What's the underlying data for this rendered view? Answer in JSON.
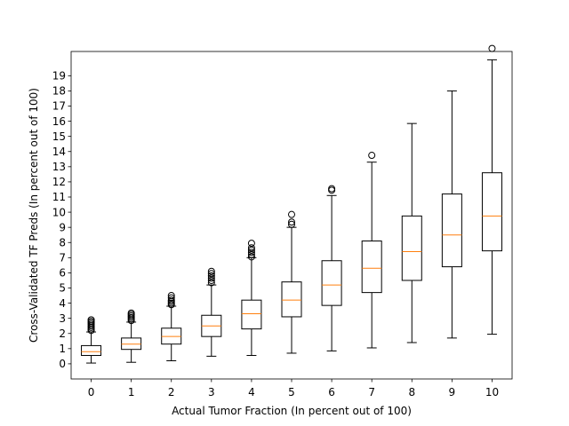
{
  "chart_data": {
    "type": "boxplot",
    "title": "",
    "xlabel": "Actual Tumor Fraction (In percent out of 100)",
    "ylabel": "Cross-Validated TF Preds (In percent out of 100)",
    "categories": [
      "0",
      "1",
      "2",
      "3",
      "4",
      "5",
      "6",
      "7",
      "8",
      "9",
      "10"
    ],
    "xlim": [
      -0.5,
      10.5
    ],
    "ylim": [
      -1,
      20.6
    ],
    "yticks": [
      "0",
      "1",
      "2",
      "3",
      "4",
      "5",
      "6",
      "7",
      "8",
      "9",
      "10",
      "11",
      "12",
      "13",
      "14",
      "15",
      "16",
      "17",
      "18",
      "19"
    ],
    "grid": false,
    "colors": {
      "box": "#000000",
      "median": "#ff7f0e",
      "flier": "#000000"
    },
    "boxes": [
      {
        "x": 0,
        "whisker_low": 0.05,
        "q1": 0.55,
        "median": 0.8,
        "q3": 1.2,
        "whisker_high": 2.1,
        "fliers": [
          2.2,
          2.3,
          2.4,
          2.5,
          2.6,
          2.7,
          2.8,
          2.9
        ]
      },
      {
        "x": 1,
        "whisker_low": 0.1,
        "q1": 0.95,
        "median": 1.3,
        "q3": 1.7,
        "whisker_high": 2.75,
        "fliers": [
          2.85,
          2.95,
          3.05,
          3.15,
          3.25,
          3.35
        ]
      },
      {
        "x": 2,
        "whisker_low": 0.2,
        "q1": 1.3,
        "median": 1.8,
        "q3": 2.35,
        "whisker_high": 3.8,
        "fliers": [
          3.9,
          4.0,
          4.1,
          4.2,
          4.35,
          4.5
        ]
      },
      {
        "x": 3,
        "whisker_low": 0.5,
        "q1": 1.8,
        "median": 2.5,
        "q3": 3.2,
        "whisker_high": 5.2,
        "fliers": [
          5.35,
          5.5,
          5.65,
          5.8,
          5.95,
          6.1
        ]
      },
      {
        "x": 4,
        "whisker_low": 0.55,
        "q1": 2.3,
        "median": 3.3,
        "q3": 4.2,
        "whisker_high": 7.0,
        "fliers": [
          7.05,
          7.2,
          7.35,
          7.5,
          7.65,
          7.95
        ]
      },
      {
        "x": 5,
        "whisker_low": 0.7,
        "q1": 3.1,
        "median": 4.2,
        "q3": 5.4,
        "whisker_high": 9.0,
        "fliers": [
          9.2,
          9.35,
          9.85
        ]
      },
      {
        "x": 6,
        "whisker_low": 0.85,
        "q1": 3.85,
        "median": 5.2,
        "q3": 6.8,
        "whisker_high": 11.1,
        "fliers": [
          11.45,
          11.55
        ]
      },
      {
        "x": 7,
        "whisker_low": 1.05,
        "q1": 4.7,
        "median": 6.3,
        "q3": 8.1,
        "whisker_high": 13.3,
        "fliers": [
          13.75
        ]
      },
      {
        "x": 8,
        "whisker_low": 1.4,
        "q1": 5.5,
        "median": 7.4,
        "q3": 9.75,
        "whisker_high": 15.85,
        "fliers": []
      },
      {
        "x": 9,
        "whisker_low": 1.7,
        "q1": 6.4,
        "median": 8.5,
        "q3": 11.2,
        "whisker_high": 18.0,
        "fliers": []
      },
      {
        "x": 10,
        "whisker_low": 1.95,
        "q1": 7.45,
        "median": 9.75,
        "q3": 12.6,
        "whisker_high": 20.05,
        "fliers": [
          20.8
        ]
      }
    ]
  }
}
